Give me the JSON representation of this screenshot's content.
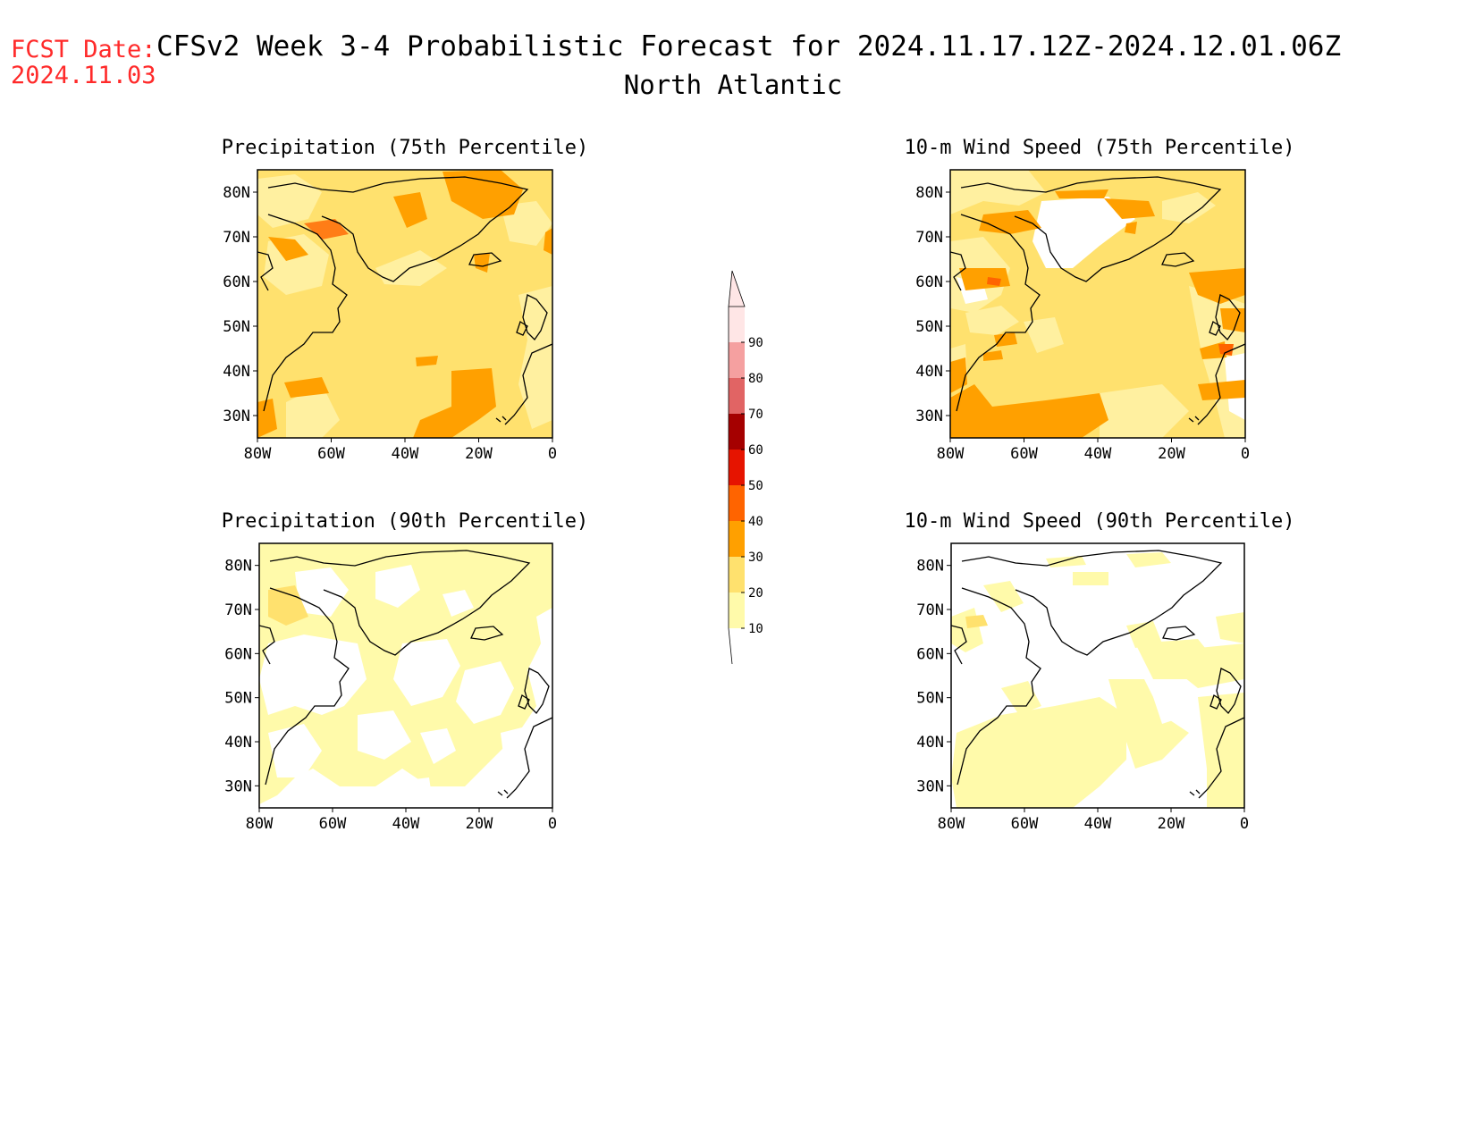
{
  "header": {
    "fcst_label": "FCST Date:",
    "fcst_date": "2024.11.03",
    "title": "CFSv2 Week 3-4 Probabilistic Forecast for 2024.11.17.12Z-2024.12.01.06Z",
    "subtitle": "North Atlantic"
  },
  "colors": {
    "fcst_text": "#ff2a2a",
    "text": "#000000",
    "coast": "#000000"
  },
  "lat_ticks": [
    "80N",
    "70N",
    "60N",
    "50N",
    "40N",
    "30N"
  ],
  "lon_ticks": [
    "80W",
    "60W",
    "40W",
    "20W",
    "0"
  ],
  "panels": [
    {
      "id": "precip-75",
      "title": "Precipitation (75th Percentile)",
      "background_class": "20-30"
    },
    {
      "id": "wind-75",
      "title": "10-m Wind Speed (75th Percentile)",
      "background_class": "20-30"
    },
    {
      "id": "precip-90",
      "title": "Precipitation (90th Percentile)",
      "background_class": "below 10"
    },
    {
      "id": "wind-90",
      "title": "10-m Wind Speed (90th Percentile)",
      "background_class": "below 10"
    }
  ],
  "colorbar": {
    "levels": [
      "10",
      "20",
      "30",
      "40",
      "50",
      "60",
      "70",
      "80",
      "90"
    ],
    "colors": [
      "#fffaaa",
      "#ffe16e",
      "#ffa000",
      "#ff6400",
      "#e61400",
      "#a50000",
      "#e16464",
      "#f5a0a0",
      "#ffe6e6"
    ]
  }
}
